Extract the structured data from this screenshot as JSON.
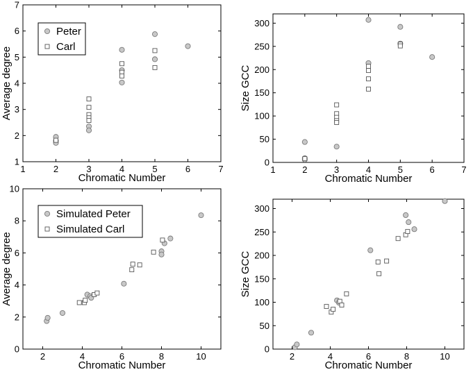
{
  "chart_data": [
    {
      "type": "scatter",
      "xlabel": "Chromatic Number",
      "ylabel": "Average degree",
      "xlim": [
        1,
        7
      ],
      "ylim": [
        1,
        7
      ],
      "xticks": [
        1,
        2,
        3,
        4,
        5,
        6,
        7
      ],
      "yticks": [
        1,
        2,
        3,
        4,
        5,
        6,
        7
      ],
      "legend_placement": "top-left",
      "series": [
        {
          "name": "Peter",
          "marker": "circle",
          "points": [
            [
              2,
              1.95
            ],
            [
              2,
              1.8
            ],
            [
              2,
              1.72
            ],
            [
              3,
              2.35
            ],
            [
              3,
              2.2
            ],
            [
              4,
              5.28
            ],
            [
              4,
              4.5
            ],
            [
              4,
              4.03
            ],
            [
              5,
              5.88
            ],
            [
              5,
              4.92
            ],
            [
              6,
              5.42
            ]
          ]
        },
        {
          "name": "Carl",
          "marker": "square",
          "points": [
            [
              2,
              1.82
            ],
            [
              3,
              3.4
            ],
            [
              3,
              3.08
            ],
            [
              3,
              2.8
            ],
            [
              3,
              2.68
            ],
            [
              3,
              2.58
            ],
            [
              4,
              4.75
            ],
            [
              4,
              4.42
            ],
            [
              4,
              4.28
            ],
            [
              5,
              5.25
            ],
            [
              5,
              4.6
            ]
          ]
        }
      ]
    },
    {
      "type": "scatter",
      "xlabel": "Chromatic Number",
      "ylabel": "Size GCC",
      "xlim": [
        1,
        7
      ],
      "ylim": [
        0,
        320
      ],
      "xticks": [
        1,
        2,
        3,
        4,
        5,
        6,
        7
      ],
      "yticks": [
        0,
        50,
        100,
        150,
        200,
        250,
        300
      ],
      "series": [
        {
          "name": "Peter",
          "marker": "circle",
          "points": [
            [
              2,
              44
            ],
            [
              2,
              9
            ],
            [
              2,
              6
            ],
            [
              3,
              34
            ],
            [
              4,
              307
            ],
            [
              4,
              214
            ],
            [
              5,
              292
            ],
            [
              5,
              256
            ],
            [
              6,
              227
            ]
          ]
        },
        {
          "name": "Carl",
          "marker": "square",
          "points": [
            [
              2,
              8
            ],
            [
              3,
              124
            ],
            [
              3,
              105
            ],
            [
              3,
              97
            ],
            [
              3,
              90
            ],
            [
              3,
              86
            ],
            [
              4,
              207
            ],
            [
              4,
              198
            ],
            [
              4,
              180
            ],
            [
              4,
              158
            ],
            [
              5,
              255
            ],
            [
              5,
              251
            ]
          ]
        }
      ]
    },
    {
      "type": "scatter",
      "xlabel": "Chromatic Number",
      "ylabel": "Average degree",
      "xlim": [
        1,
        11
      ],
      "ylim": [
        0,
        10
      ],
      "xticks": [
        2,
        4,
        6,
        8,
        10
      ],
      "yticks": [
        0,
        2,
        4,
        6,
        8,
        10
      ],
      "legend_placement": "top-left",
      "series": [
        {
          "name": "Simulated Peter",
          "marker": "circle",
          "points": [
            [
              2.2,
              1.75
            ],
            [
              2.25,
              1.95
            ],
            [
              3,
              2.25
            ],
            [
              4.25,
              3.4
            ],
            [
              4.4,
              3.3
            ],
            [
              4.45,
              3.2
            ],
            [
              6.1,
              4.08
            ],
            [
              8,
              6.1
            ],
            [
              8,
              5.9
            ],
            [
              8.15,
              6.6
            ],
            [
              8.45,
              6.9
            ],
            [
              10,
              8.35
            ]
          ]
        },
        {
          "name": "Simulated Carl",
          "marker": "square",
          "points": [
            [
              3.85,
              2.9
            ],
            [
              4.1,
              2.9
            ],
            [
              4.15,
              3.05
            ],
            [
              4.6,
              3.4
            ],
            [
              4.75,
              3.5
            ],
            [
              6.5,
              4.95
            ],
            [
              6.55,
              5.3
            ],
            [
              6.9,
              5.25
            ],
            [
              7.6,
              6.05
            ],
            [
              8.05,
              6.8
            ]
          ]
        }
      ]
    },
    {
      "type": "scatter",
      "xlabel": "Chromatic Number",
      "ylabel": "Size GCC",
      "xlim": [
        1,
        11
      ],
      "ylim": [
        0,
        320
      ],
      "xticks": [
        2,
        4,
        6,
        8,
        10
      ],
      "yticks": [
        0,
        50,
        100,
        150,
        200,
        250,
        300
      ],
      "series": [
        {
          "name": "Simulated Peter",
          "marker": "circle",
          "points": [
            [
              2.15,
              4
            ],
            [
              2.25,
              10
            ],
            [
              3,
              35
            ],
            [
              4.35,
              104
            ],
            [
              4.45,
              99
            ],
            [
              6.1,
              211
            ],
            [
              7.95,
              286
            ],
            [
              8.1,
              271
            ],
            [
              8.4,
              256
            ],
            [
              10,
              316
            ]
          ]
        },
        {
          "name": "Simulated Carl",
          "marker": "square",
          "points": [
            [
              3.8,
              91
            ],
            [
              4.05,
              79
            ],
            [
              4.15,
              85
            ],
            [
              4.5,
              102
            ],
            [
              4.6,
              94
            ],
            [
              4.85,
              118
            ],
            [
              6.55,
              161
            ],
            [
              6.5,
              186
            ],
            [
              6.95,
              188
            ],
            [
              7.55,
              236
            ],
            [
              7.95,
              244
            ],
            [
              8.05,
              251
            ]
          ]
        }
      ]
    }
  ]
}
